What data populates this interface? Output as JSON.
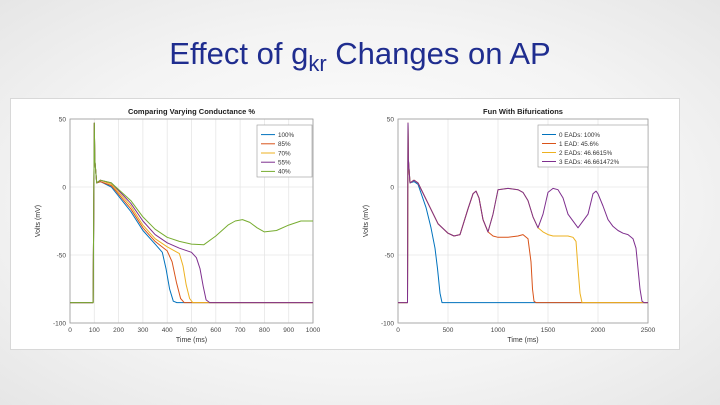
{
  "slide": {
    "title_prefix": "Effect of g",
    "title_sub": "kr",
    "title_suffix": " Changes on AP"
  },
  "colors": {
    "title": "#1f2d8f",
    "series": [
      "#0072bd",
      "#d95319",
      "#edb120",
      "#7e2f8e",
      "#77ac30"
    ]
  },
  "chart_data": [
    {
      "type": "line",
      "title": "Comparing Varying Conductance %",
      "xlabel": "Time (ms)",
      "ylabel": "Volts (mV)",
      "xlim": [
        0,
        1000
      ],
      "ylim": [
        -100,
        50
      ],
      "xticks": [
        0,
        100,
        200,
        300,
        400,
        500,
        600,
        700,
        800,
        900,
        1000
      ],
      "yticks": [
        -100,
        -50,
        0,
        50
      ],
      "legend_position": "top-right",
      "series": [
        {
          "name": "100%",
          "x": [
            0,
            1,
            5,
            10,
            15,
            20,
            30,
            60,
            95,
            100,
            102,
            110,
            125,
            170,
            250,
            300,
            350,
            380,
            395,
            410,
            425,
            440,
            460,
            800,
            1000
          ],
          "y": [
            -85,
            -85,
            -85,
            -85,
            -85,
            -85,
            -85,
            -85,
            -85,
            47,
            20,
            3,
            4,
            0,
            -18,
            -32,
            -42,
            -48,
            -60,
            -75,
            -84,
            -85,
            -85,
            -85,
            -85
          ]
        },
        {
          "name": "85%",
          "x": [
            0,
            95,
            100,
            102,
            110,
            125,
            170,
            250,
            300,
            350,
            400,
            420,
            438,
            455,
            470,
            485,
            1000
          ],
          "y": [
            -85,
            -85,
            47,
            20,
            3,
            4,
            1,
            -16,
            -30,
            -40,
            -47,
            -55,
            -70,
            -82,
            -85,
            -85,
            -85
          ]
        },
        {
          "name": "70%",
          "x": [
            0,
            95,
            100,
            102,
            110,
            125,
            170,
            250,
            300,
            350,
            400,
            450,
            465,
            478,
            492,
            505,
            520,
            1000
          ],
          "y": [
            -85,
            -85,
            47,
            20,
            3,
            5,
            2,
            -14,
            -28,
            -38,
            -44,
            -49,
            -58,
            -72,
            -82,
            -85,
            -85,
            -85
          ]
        },
        {
          "name": "55%",
          "x": [
            0,
            95,
            100,
            102,
            110,
            125,
            170,
            250,
            300,
            350,
            400,
            450,
            500,
            520,
            535,
            548,
            560,
            575,
            1000
          ],
          "y": [
            -85,
            -85,
            47,
            20,
            3,
            5,
            3,
            -12,
            -25,
            -35,
            -41,
            -45,
            -48,
            -52,
            -60,
            -73,
            -83,
            -85,
            -85
          ]
        },
        {
          "name": "40%",
          "x": [
            0,
            95,
            100,
            102,
            110,
            125,
            170,
            250,
            300,
            350,
            400,
            450,
            500,
            550,
            600,
            650,
            680,
            710,
            740,
            770,
            800,
            850,
            900,
            950,
            1000
          ],
          "y": [
            -85,
            -85,
            47,
            20,
            3,
            5,
            3,
            -10,
            -22,
            -31,
            -37,
            -40,
            -42,
            -42.5,
            -36,
            -28,
            -25,
            -24,
            -26,
            -30,
            -33,
            -32,
            -28,
            -25,
            -25
          ]
        }
      ]
    },
    {
      "type": "line",
      "title": "Fun With Bifurications",
      "xlabel": "Time (ms)",
      "ylabel": "Volts (mV)",
      "xlim": [
        0,
        2500
      ],
      "ylim": [
        -100,
        50
      ],
      "xticks": [
        0,
        500,
        1000,
        1500,
        2000,
        2500
      ],
      "yticks": [
        -100,
        -50,
        0,
        50
      ],
      "legend_position": "top-right",
      "series": [
        {
          "name": "0 EADs: 100%",
          "x": [
            0,
            95,
            100,
            104,
            120,
            160,
            200,
            280,
            330,
            370,
            395,
            420,
            440,
            460,
            2500
          ],
          "y": [
            -85,
            -85,
            47,
            20,
            3,
            4,
            2,
            -15,
            -30,
            -45,
            -60,
            -78,
            -85,
            -85,
            -85
          ]
        },
        {
          "name": "1 EAD: 45.6%",
          "x": [
            0,
            95,
            100,
            104,
            120,
            160,
            200,
            300,
            400,
            500,
            560,
            620,
            700,
            750,
            780,
            810,
            850,
            900,
            950,
            1000,
            1100,
            1200,
            1250,
            1300,
            1330,
            1345,
            1360,
            1380,
            1400,
            2500
          ],
          "y": [
            -85,
            -85,
            47,
            20,
            3,
            5,
            3,
            -12,
            -27,
            -34,
            -36,
            -35,
            -16,
            -5,
            -3,
            -8,
            -24,
            -33,
            -36,
            -37,
            -37,
            -36,
            -35,
            -38,
            -55,
            -75,
            -84,
            -85,
            -85,
            -85
          ]
        },
        {
          "name": "2 EADs: 46.6615%",
          "x": [
            0,
            95,
            100,
            104,
            120,
            160,
            200,
            300,
            400,
            500,
            560,
            620,
            700,
            750,
            780,
            810,
            850,
            900,
            950,
            1000,
            1100,
            1200,
            1250,
            1300,
            1350,
            1400,
            1450,
            1500,
            1550,
            1600,
            1650,
            1700,
            1750,
            1780,
            1800,
            1820,
            1840,
            1860,
            2500
          ],
          "y": [
            -85,
            -85,
            47,
            20,
            3,
            5,
            3,
            -12,
            -27,
            -34,
            -36,
            -35,
            -16,
            -5,
            -3,
            -8,
            -24,
            -33,
            -20,
            -2,
            -1,
            -2,
            -4,
            -10,
            -22,
            -30,
            -33,
            -35,
            -36,
            -36,
            -36,
            -36,
            -37,
            -40,
            -60,
            -78,
            -85,
            -85,
            -85
          ]
        },
        {
          "name": "3 EADs: 46.661472%",
          "x": [
            0,
            95,
            100,
            104,
            120,
            160,
            200,
            300,
            400,
            500,
            560,
            620,
            700,
            750,
            780,
            810,
            850,
            900,
            950,
            1000,
            1100,
            1200,
            1250,
            1300,
            1350,
            1400,
            1450,
            1500,
            1550,
            1600,
            1650,
            1700,
            1800,
            1900,
            1950,
            1980,
            2000,
            2050,
            2100,
            2150,
            2200,
            2250,
            2300,
            2350,
            2380,
            2400,
            2420,
            2440,
            2460,
            2500
          ],
          "y": [
            -85,
            -85,
            47,
            20,
            3,
            5,
            3,
            -12,
            -27,
            -34,
            -36,
            -35,
            -16,
            -5,
            -3,
            -8,
            -24,
            -33,
            -20,
            -2,
            -1,
            -2,
            -4,
            -10,
            -22,
            -30,
            -20,
            -4,
            -1,
            -2,
            -8,
            -20,
            -30,
            -20,
            -5,
            -3,
            -5,
            -14,
            -24,
            -29,
            -32,
            -34,
            -35,
            -38,
            -45,
            -60,
            -75,
            -84,
            -85,
            -85
          ]
        }
      ]
    }
  ]
}
